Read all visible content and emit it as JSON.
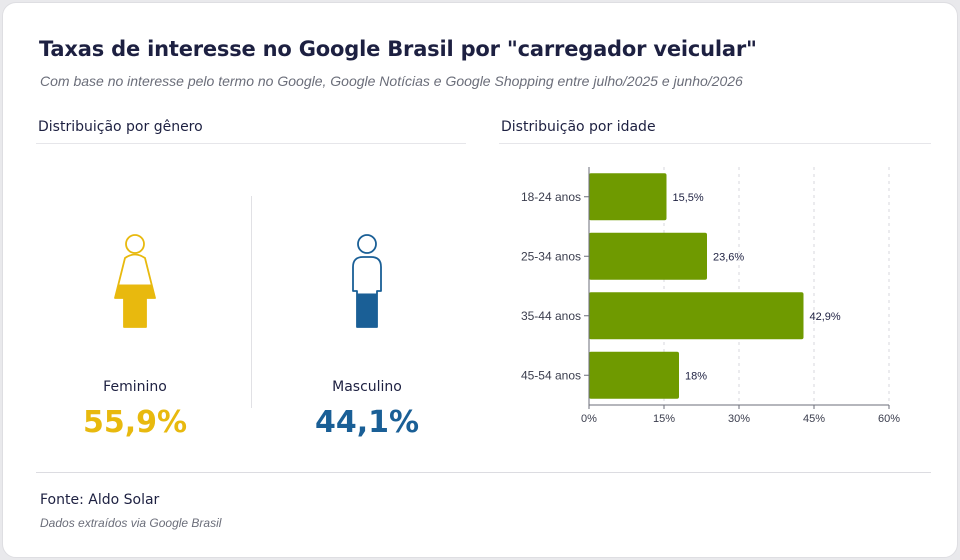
{
  "title": "Taxas de interesse no Google Brasil por \"carregador veicular\"",
  "subtitle": "Com base no interesse pelo termo no Google, Google Notícias e Google Shopping entre julho/2025 e junho/2026",
  "gender_section": {
    "title": "Distribuição por gênero",
    "female": {
      "label": "Feminino",
      "value": "55,9%",
      "share": 55.9,
      "color": "#e8b90e",
      "icon": "female-person-icon"
    },
    "male": {
      "label": "Masculino",
      "value": "44,1%",
      "share": 44.1,
      "color": "#1a5f96",
      "icon": "male-person-icon"
    }
  },
  "age_section": {
    "title": "Distribuição por idade"
  },
  "footer": {
    "source": "Fonte: Aldo Solar",
    "note": "Dados extraídos via Google Brasil"
  },
  "chart_data": {
    "type": "bar",
    "orientation": "horizontal",
    "categories": [
      "18-24 anos",
      "25-34 anos",
      "35-44 anos",
      "45-54 anos"
    ],
    "values": [
      15.5,
      23.6,
      42.9,
      18
    ],
    "value_labels": [
      "15,5%",
      "23,6%",
      "42,9%",
      "18%"
    ],
    "xlim": [
      0,
      60
    ],
    "xticks": [
      0,
      15,
      30,
      45,
      60
    ],
    "xtick_labels": [
      "0%",
      "15%",
      "30%",
      "45%",
      "60%"
    ],
    "grid": "vertical dashed",
    "bar_color": "#6f9a00"
  }
}
